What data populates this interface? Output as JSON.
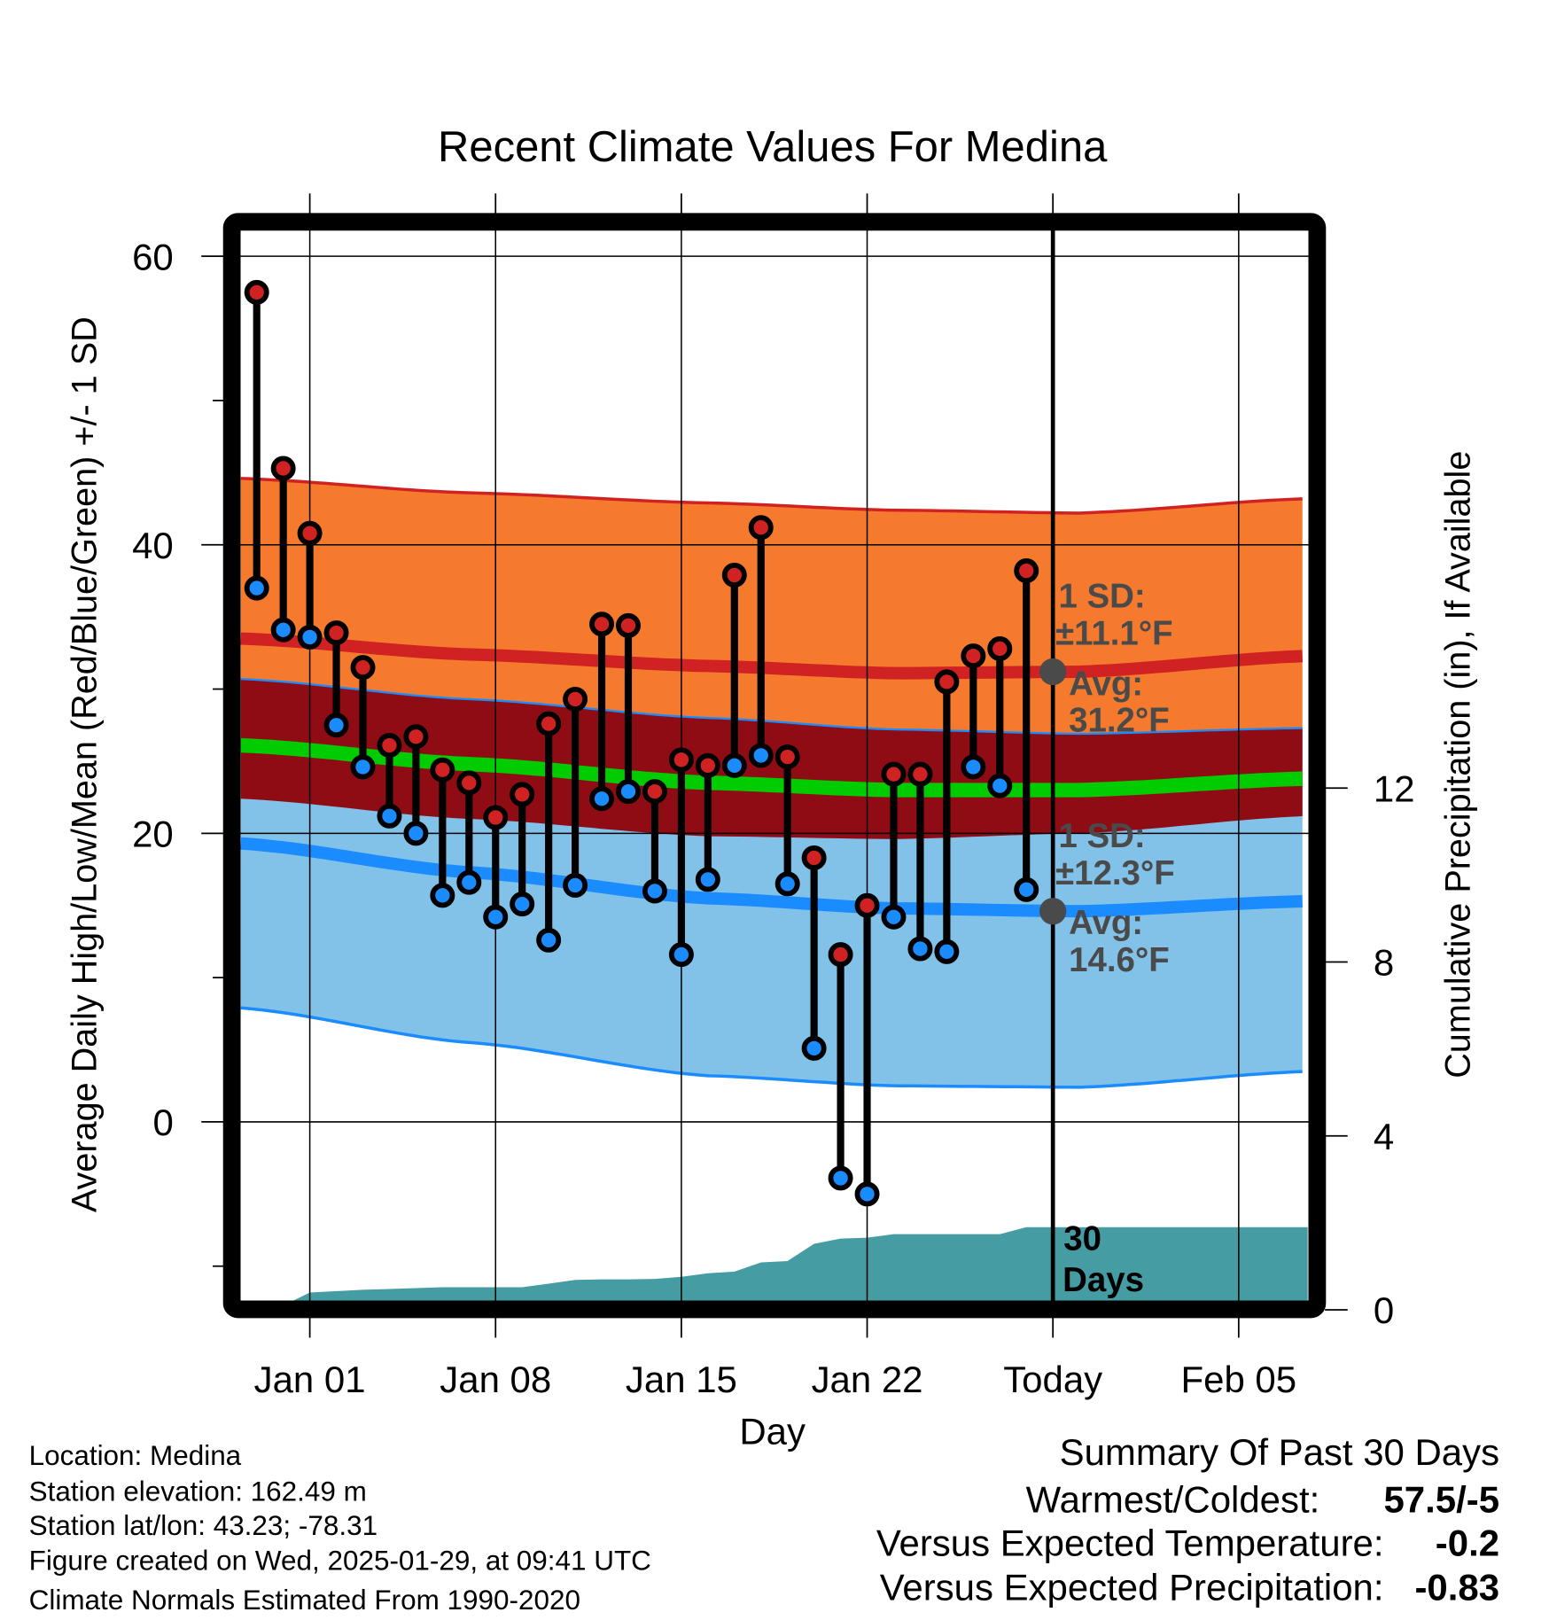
{
  "chart_data": {
    "type": "line",
    "title": "Recent Climate Values For Medina",
    "xlabel": "Day",
    "ylabel": "Average Daily High/Low/Mean (Red/Blue/Green) +/- 1 SD",
    "y2label": "Cumulative Precipitation (in), If Available",
    "ylim": [
      -12.45,
      62.7
    ],
    "y2lim": [
      0,
      16
    ],
    "grid": true,
    "x_ticks": [
      {
        "day": 0,
        "label": "Jan 01"
      },
      {
        "day": 7,
        "label": "Jan 08"
      },
      {
        "day": 14,
        "label": "Jan 15"
      },
      {
        "day": 21,
        "label": "Jan 22"
      },
      {
        "day": 28,
        "label": "Today"
      },
      {
        "day": 35,
        "label": "Feb 05"
      }
    ],
    "xlim_days": [
      -2.6,
      37.6
    ],
    "y_ticks": [
      0,
      20,
      40,
      60
    ],
    "y_ticks_labels": [
      "0",
      "20",
      "40",
      "60"
    ],
    "y_minor_ticks": [
      -10,
      10,
      30,
      50
    ],
    "y2_ticks": [
      0,
      4,
      8,
      12
    ],
    "y2_ticks_labels": [
      "0",
      "4",
      "8",
      "12"
    ],
    "today_day": 28,
    "daily": {
      "dates": [
        "Dec 30",
        "Dec 31",
        "Jan 01",
        "Jan 02",
        "Jan 03",
        "Jan 04",
        "Jan 05",
        "Jan 06",
        "Jan 07",
        "Jan 08",
        "Jan 09",
        "Jan 10",
        "Jan 11",
        "Jan 12",
        "Jan 13",
        "Jan 14",
        "Jan 15",
        "Jan 16",
        "Jan 17",
        "Jan 18",
        "Jan 19",
        "Jan 20",
        "Jan 21",
        "Jan 22",
        "Jan 23",
        "Jan 24",
        "Jan 25",
        "Jan 26",
        "Jan 27",
        "Jan 28"
      ],
      "start_day": -2,
      "high": [
        57.5,
        45.3,
        40.8,
        33.9,
        31.5,
        26.1,
        26.7,
        24.4,
        23.5,
        21.1,
        22.7,
        27.6,
        29.3,
        34.5,
        34.4,
        22.9,
        25.1,
        24.7,
        37.9,
        41.2,
        25.3,
        18.3,
        11.6,
        15.0,
        24.1,
        24.1,
        30.5,
        32.3,
        32.8,
        38.2
      ],
      "low": [
        37.0,
        34.1,
        33.6,
        27.5,
        24.6,
        21.2,
        20.0,
        15.7,
        16.6,
        14.2,
        15.1,
        12.6,
        16.4,
        22.4,
        22.9,
        16.0,
        11.6,
        16.8,
        24.7,
        25.4,
        16.5,
        5.1,
        -3.9,
        -5.0,
        14.2,
        12.0,
        11.8,
        24.6,
        23.3,
        16.1
      ],
      "precip_cumulative": [
        0,
        0.1,
        0.4,
        0.43,
        0.46,
        0.48,
        0.5,
        0.52,
        0.52,
        0.52,
        0.52,
        0.6,
        0.69,
        0.7,
        0.7,
        0.71,
        0.76,
        0.84,
        0.88,
        1.09,
        1.12,
        1.52,
        1.64,
        1.66,
        1.74,
        1.74,
        1.74,
        1.74,
        1.74,
        1.9
      ]
    },
    "normals": {
      "days": [
        -2.6,
        6,
        15,
        22,
        29,
        37.6
      ],
      "high_upper": [
        44.6,
        43.6,
        42.9,
        42.4,
        42.2,
        43.2
      ],
      "high_mean": [
        33.5,
        32.4,
        31.6,
        31.1,
        31.2,
        32.3
      ],
      "high_lower": [
        22.4,
        21.0,
        19.8,
        19.6,
        20.0,
        21.2
      ],
      "low_upper": [
        30.7,
        29.3,
        28.0,
        27.2,
        26.9,
        27.3
      ],
      "low_mean": [
        19.3,
        17.3,
        15.5,
        14.8,
        14.6,
        15.3
      ],
      "low_lower": [
        7.9,
        5.5,
        3.2,
        2.5,
        2.4,
        3.5
      ],
      "mean": [
        26.1,
        24.8,
        23.5,
        23.0,
        23.0,
        23.8
      ]
    },
    "annotations": {
      "high_sd_label": "1 SD:",
      "high_sd_value": "±11.1°F",
      "high_avg_label": "Avg:",
      "high_avg_value": "31.2°F",
      "high_avg": 31.2,
      "low_sd_label": "1 SD:",
      "low_sd_value": "±12.3°F",
      "low_avg_label": "Avg:",
      "low_avg_value": "14.6°F",
      "low_avg": 14.6,
      "precip_label_1": "30",
      "precip_label_2": "Days"
    },
    "colors": {
      "high_band": "#f57a2d",
      "low_band": "#82c1e8",
      "overlap_band": "#900c15",
      "high_line": "#d02222",
      "low_line": "#1a8cff",
      "mean_line": "#00cc00",
      "precip": "#469ca3",
      "annotation": "#4a4a4a"
    }
  },
  "info": {
    "location": "Location: Medina",
    "elevation": "Station elevation: 162.49 m",
    "latlon": "Station lat/lon: 43.23; -78.31",
    "created": "Figure created on Wed, 2025-01-29, at 09:41 UTC",
    "normals": "Climate Normals Estimated From 1990-2020"
  },
  "summary": {
    "title": "Summary Of Past 30 Days",
    "warmest_label": "Warmest/Coldest:",
    "warmest_value": "57.5/-5",
    "temp_label": "Versus Expected Temperature:",
    "temp_value": "-0.2",
    "precip_label": "Versus Expected Precipitation:",
    "precip_value": "-0.83",
    "temp_color": "#1a8cff",
    "precip_color": "#a0522d"
  }
}
